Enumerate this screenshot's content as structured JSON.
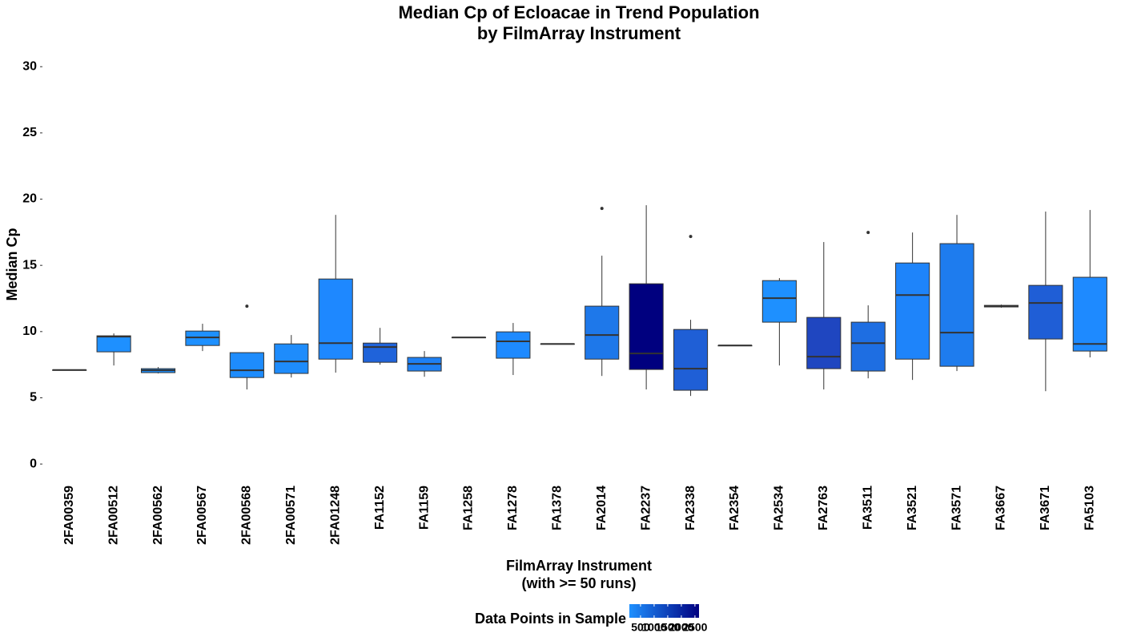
{
  "chart_data": {
    "type": "box",
    "title": [
      "Median Cp of Ecloacae in Trend Population",
      "by FilmArray Instrument"
    ],
    "x_label": [
      "FilmArray Instrument",
      "(with >= 50 runs)"
    ],
    "y_label": "Median Cp",
    "ylim": [
      -0.9,
      30.8
    ],
    "yticks": [
      0,
      5,
      10,
      15,
      20,
      25,
      30
    ],
    "boxes": [
      {
        "label": "2FA00359",
        "whisker_low": 7.1,
        "q1": 7.1,
        "median": 7.1,
        "q3": 7.1,
        "whisker_high": 7.1,
        "color": "#1E90FF"
      },
      {
        "label": "2FA00512",
        "whisker_low": 7.44,
        "q1": 8.47,
        "median": 9.62,
        "q3": 9.68,
        "whisker_high": 9.86,
        "color": "#1E90FF"
      },
      {
        "label": "2FA00562",
        "whisker_low": 6.84,
        "q1": 6.9,
        "median": 7.08,
        "q3": 7.2,
        "whisker_high": 7.32,
        "color": "#1E90FF"
      },
      {
        "label": "2FA00567",
        "whisker_low": 8.53,
        "q1": 8.95,
        "median": 9.56,
        "q3": 10.04,
        "whisker_high": 10.59,
        "color": "#1E90FF"
      },
      {
        "label": "2FA00568",
        "whisker_low": 5.63,
        "q1": 6.53,
        "median": 7.08,
        "q3": 8.41,
        "whisker_high": 8.41,
        "color": "#1E8CFC",
        "outliers": [
          11.92
        ]
      },
      {
        "label": "2FA00571",
        "whisker_low": 6.53,
        "q1": 6.84,
        "median": 7.74,
        "q3": 9.07,
        "whisker_high": 9.74,
        "color": "#1E8CFC"
      },
      {
        "label": "2FA01248",
        "whisker_low": 6.9,
        "q1": 7.92,
        "median": 9.13,
        "q3": 13.97,
        "whisker_high": 18.81,
        "color": "#1E88FF"
      },
      {
        "label": "FA1152",
        "whisker_low": 7.5,
        "q1": 7.68,
        "median": 8.83,
        "q3": 9.13,
        "whisker_high": 10.28,
        "color": "#1F63DA"
      },
      {
        "label": "FA1159",
        "whisker_low": 6.59,
        "q1": 7.02,
        "median": 7.56,
        "q3": 8.05,
        "whisker_high": 8.53,
        "color": "#1E80F4"
      },
      {
        "label": "FA1258",
        "whisker_low": 9.56,
        "q1": 9.56,
        "median": 9.56,
        "q3": 9.56,
        "whisker_high": 9.56,
        "color": "#1E90FF"
      },
      {
        "label": "FA1278",
        "whisker_low": 6.72,
        "q1": 7.99,
        "median": 9.26,
        "q3": 9.98,
        "whisker_high": 10.65,
        "color": "#1E8AFF"
      },
      {
        "label": "FA1378",
        "whisker_low": 9.07,
        "q1": 9.07,
        "median": 9.07,
        "q3": 9.07,
        "whisker_high": 9.07,
        "color": "#1E90FF"
      },
      {
        "label": "FA2014",
        "whisker_low": 6.65,
        "q1": 7.92,
        "median": 9.74,
        "q3": 11.92,
        "whisker_high": 15.73,
        "color": "#1E78EA",
        "outliers": [
          19.3
        ]
      },
      {
        "label": "FA2237",
        "whisker_low": 5.63,
        "q1": 7.14,
        "median": 8.35,
        "q3": 13.61,
        "whisker_high": 19.54,
        "color": "#00007F"
      },
      {
        "label": "FA2338",
        "whisker_low": 5.14,
        "q1": 5.57,
        "median": 7.2,
        "q3": 10.16,
        "whisker_high": 10.89,
        "color": "#1F5FD6",
        "outliers": [
          17.18
        ]
      },
      {
        "label": "FA2354",
        "whisker_low": 8.95,
        "q1": 8.95,
        "median": 8.95,
        "q3": 8.95,
        "whisker_high": 8.95,
        "color": "#1E90FF"
      },
      {
        "label": "FA2534",
        "whisker_low": 7.44,
        "q1": 10.71,
        "median": 12.52,
        "q3": 13.85,
        "whisker_high": 14.04,
        "color": "#1E90FF"
      },
      {
        "label": "FA2763",
        "whisker_low": 5.63,
        "q1": 7.2,
        "median": 8.11,
        "q3": 11.07,
        "whisker_high": 16.76,
        "color": "#1F46C0"
      },
      {
        "label": "FA3511",
        "whisker_low": 6.47,
        "q1": 7.02,
        "median": 9.13,
        "q3": 10.71,
        "whisker_high": 11.98,
        "color": "#1E6EE2",
        "outliers": [
          17.48
        ]
      },
      {
        "label": "FA3521",
        "whisker_low": 6.35,
        "q1": 7.92,
        "median": 12.76,
        "q3": 15.18,
        "whisker_high": 17.48,
        "color": "#1E84FA"
      },
      {
        "label": "FA3571",
        "whisker_low": 7.02,
        "q1": 7.38,
        "median": 9.92,
        "q3": 16.64,
        "whisker_high": 18.81,
        "color": "#1E7CEE"
      },
      {
        "label": "FA3667",
        "whisker_low": 11.8,
        "q1": 11.86,
        "median": 11.92,
        "q3": 11.98,
        "whisker_high": 12.04,
        "color": "#1E90FF"
      },
      {
        "label": "FA3671",
        "whisker_low": 5.5,
        "q1": 9.44,
        "median": 12.16,
        "q3": 13.49,
        "whisker_high": 19.06,
        "color": "#1F5ED6"
      },
      {
        "label": "FA5103",
        "whisker_low": 8.05,
        "q1": 8.53,
        "median": 9.07,
        "q3": 14.1,
        "whisker_high": 19.18,
        "color": "#1E8AFF"
      }
    ],
    "colorbar": {
      "title": "Data Points in Sample",
      "lim": [
        90,
        2650
      ],
      "ticks": [
        500,
        1000,
        1500,
        2000,
        2500
      ],
      "low_color": "#1E90FF",
      "high_color": "#000080"
    }
  }
}
